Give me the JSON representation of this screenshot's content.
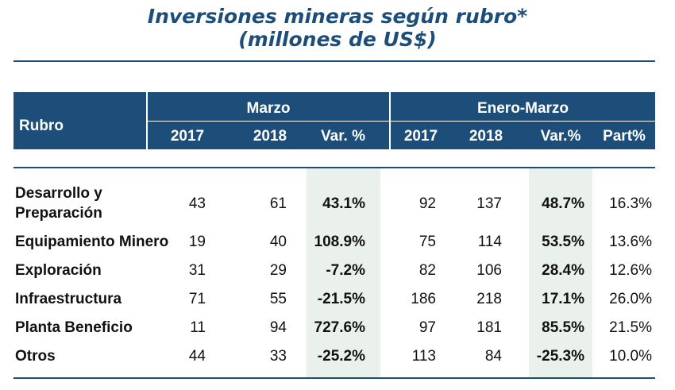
{
  "title": {
    "line1": "Inversiones mineras según rubro*",
    "line2": "(millones de US$)"
  },
  "table": {
    "row_header": "Rubro",
    "group_marzo": "Marzo",
    "group_enero_marzo": "Enero-Marzo",
    "columns": [
      "2017",
      "2018",
      "Var. %",
      "2017",
      "2018",
      "Var.%",
      "Part%"
    ],
    "rows": [
      {
        "label_line1": "Desarrollo y",
        "label_line2": "Preparación",
        "m2017": "43",
        "m2018": "61",
        "mvar": "43.1%",
        "e2017": "92",
        "e2018": "137",
        "evar": "48.7%",
        "part": "16.3%"
      },
      {
        "label_line1": "Equipamiento Minero",
        "label_line2": "",
        "m2017": "19",
        "m2018": "40",
        "mvar": "108.9%",
        "e2017": "75",
        "e2018": "114",
        "evar": "53.5%",
        "part": "13.6%"
      },
      {
        "label_line1": "Exploración",
        "label_line2": "",
        "m2017": "31",
        "m2018": "29",
        "mvar": "-7.2%",
        "e2017": "82",
        "e2018": "106",
        "evar": "28.4%",
        "part": "12.6%"
      },
      {
        "label_line1": "Infraestructura",
        "label_line2": "",
        "m2017": "71",
        "m2018": "55",
        "mvar": "-21.5%",
        "e2017": "186",
        "e2018": "218",
        "evar": "17.1%",
        "part": "26.0%"
      },
      {
        "label_line1": "Planta Beneficio",
        "label_line2": "",
        "m2017": "11",
        "m2018": "94",
        "mvar": "727.6%",
        "e2017": "97",
        "e2018": "181",
        "evar": "85.5%",
        "part": "21.5%"
      },
      {
        "label_line1": "Otros",
        "label_line2": "",
        "m2017": "44",
        "m2018": "33",
        "mvar": "-25.2%",
        "e2017": "113",
        "e2018": "84",
        "evar": "-25.3%",
        "part": "10.0%"
      }
    ]
  },
  "colors": {
    "header_bg": "#1d4e79",
    "title": "#1d4e79",
    "highlight_bg": "#eaf1ec"
  }
}
